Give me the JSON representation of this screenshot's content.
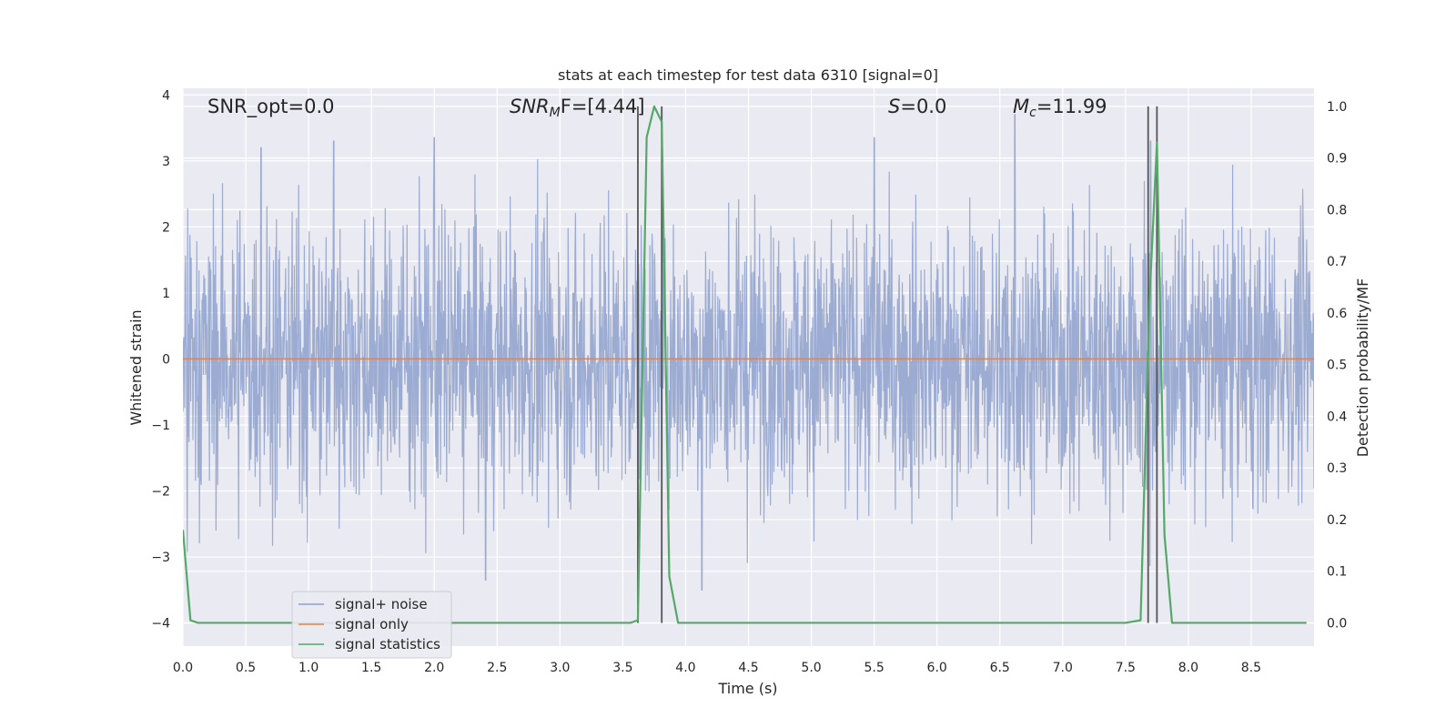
{
  "chart_data": {
    "type": "line",
    "title": "stats at each timestep for test data 6310 [signal=0]",
    "xlabel": "Time (s)",
    "ylabel_left": "Whitened strain",
    "ylabel_right": "Detection probability/MF",
    "xlim": [
      0.0,
      9.0
    ],
    "ylim_left": [
      -4.35,
      4.1
    ],
    "ylim_right": [
      -0.045,
      1.035
    ],
    "x_ticks": [
      "0.0",
      "0.5",
      "1.0",
      "1.5",
      "2.0",
      "2.5",
      "3.0",
      "3.5",
      "4.0",
      "4.5",
      "5.0",
      "5.5",
      "6.0",
      "6.5",
      "7.0",
      "7.5",
      "8.0",
      "8.5"
    ],
    "y_ticks_left": [
      "−4",
      "−3",
      "−2",
      "−1",
      "0",
      "1",
      "2",
      "3",
      "4"
    ],
    "y_ticks_right": [
      "0.0",
      "0.1",
      "0.2",
      "0.3",
      "0.4",
      "0.5",
      "0.6",
      "0.7",
      "0.8",
      "0.9",
      "1.0"
    ],
    "grid": true,
    "legend_position": "lower-left",
    "annotations": {
      "snr_opt": "SNR_opt=0.0",
      "snr_mf_main": "SNR",
      "snr_mf_sub": "M",
      "snr_mf_rest": "F=[4.44]",
      "s_main": "S",
      "s_rest": "=0.0",
      "mc_main": "M",
      "mc_sub": "c",
      "mc_rest": "=11.99"
    },
    "series": [
      {
        "name": "signal+ noise",
        "color": "#8da0cb",
        "axis": "left",
        "description_range": [
          -4.0,
          3.7
        ]
      },
      {
        "name": "signal only",
        "color": "#dd8452",
        "axis": "left",
        "x": [
          0.0,
          9.0
        ],
        "y": [
          0.0,
          0.0
        ]
      },
      {
        "name": "signal statistics",
        "color": "#55a868",
        "axis": "right",
        "x": [
          0.0,
          0.06,
          0.12,
          0.5,
          1.0,
          1.5,
          2.0,
          2.5,
          3.0,
          3.5,
          3.56,
          3.62,
          3.69,
          3.75,
          3.81,
          3.87,
          3.94,
          4.0,
          4.5,
          5.0,
          5.5,
          6.0,
          6.5,
          7.0,
          7.5,
          7.62,
          7.69,
          7.75,
          7.81,
          7.87,
          7.94,
          8.5,
          8.94
        ],
        "y": [
          0.18,
          0.005,
          0.0,
          0.0,
          0.0,
          0.0,
          0.0,
          0.0,
          0.0,
          0.0,
          0.0,
          0.005,
          0.94,
          1.0,
          0.97,
          0.09,
          0.0,
          0.0,
          0.0,
          0.0,
          0.0,
          0.0,
          0.0,
          0.0,
          0.0,
          0.005,
          0.62,
          0.93,
          0.17,
          0.0,
          0.0,
          0.0,
          0.0
        ]
      }
    ],
    "vertical_lines": {
      "color": "#555555",
      "axis": "right",
      "x": [
        3.62,
        3.81,
        7.68,
        7.75
      ],
      "y_range": [
        0.0,
        1.0
      ]
    },
    "noise_peaks": [
      {
        "x": 0.62,
        "y": 3.2
      },
      {
        "x": 1.2,
        "y": 3.3
      },
      {
        "x": 2.0,
        "y": 3.35
      },
      {
        "x": 2.41,
        "y": -3.35
      },
      {
        "x": 4.13,
        "y": -3.5
      },
      {
        "x": 5.5,
        "y": 3.35
      },
      {
        "x": 6.62,
        "y": 3.7
      },
      {
        "x": 7.7,
        "y": 3.3
      }
    ]
  }
}
